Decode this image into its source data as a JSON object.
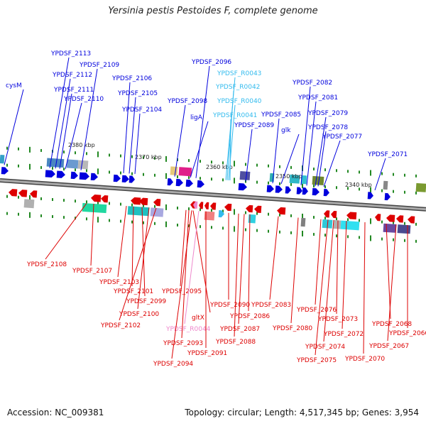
{
  "title": "Yersinia pestis Pestoides F, complete genome",
  "footer": {
    "accession": "Accession: NC_009381",
    "summary": "Topology: circular; Length: 4,517,345 bp; Genes: 3,954"
  },
  "colors": {
    "forward_gene": "#0000dd",
    "reverse_gene": "#dd0000",
    "rna_forward": "#33bbee",
    "rna_reverse": "#ee88cc",
    "backbone": "#777777",
    "tick": "#228822"
  },
  "scale_labels": [
    {
      "text": "2380 kbp",
      "kbp": 2380
    },
    {
      "text": "2370 kbp",
      "kbp": 2370
    },
    {
      "text": "2360 kbp",
      "kbp": 2360
    },
    {
      "text": "2350 kbp",
      "kbp": 2350
    },
    {
      "text": "2340 kbp",
      "kbp": 2340
    }
  ],
  "forward_labels": [
    {
      "text": "cysM",
      "type": "gene"
    },
    {
      "text": "YPDSF_2113",
      "type": "gene"
    },
    {
      "text": "YPDSF_2112",
      "type": "gene"
    },
    {
      "text": "YPDSF_2111",
      "type": "gene"
    },
    {
      "text": "YPDSF_2110",
      "type": "gene"
    },
    {
      "text": "YPDSF_2109",
      "type": "gene"
    },
    {
      "text": "YPDSF_2106",
      "type": "gene"
    },
    {
      "text": "YPDSF_2105",
      "type": "gene"
    },
    {
      "text": "YPDSF_2104",
      "type": "gene"
    },
    {
      "text": "YPDSF_2098",
      "type": "gene"
    },
    {
      "text": "ligA",
      "type": "gene"
    },
    {
      "text": "YPDSF_2096",
      "type": "gene"
    },
    {
      "text": "YPDSF_R0043",
      "type": "rna"
    },
    {
      "text": "YPDSF_R0042",
      "type": "rna"
    },
    {
      "text": "YPDSF_R0040",
      "type": "rna"
    },
    {
      "text": "YPDSF_R0041",
      "type": "rna"
    },
    {
      "text": "YPDSF_2089",
      "type": "gene"
    },
    {
      "text": "YPDSF_2085",
      "type": "gene"
    },
    {
      "text": "glk",
      "type": "gene"
    },
    {
      "text": "YPDSF_2082",
      "type": "gene"
    },
    {
      "text": "YPDSF_2081",
      "type": "gene"
    },
    {
      "text": "YPDSF_2079",
      "type": "gene"
    },
    {
      "text": "YPDSF_2078",
      "type": "gene"
    },
    {
      "text": "YPDSF_2077",
      "type": "gene"
    },
    {
      "text": "YPDSF_2071",
      "type": "gene"
    }
  ],
  "reverse_labels": [
    {
      "text": "YPDSF_2108",
      "type": "gene"
    },
    {
      "text": "YPDSF_2107",
      "type": "gene"
    },
    {
      "text": "YPDSF_2103",
      "type": "gene"
    },
    {
      "text": "YPDSF_2101",
      "type": "gene"
    },
    {
      "text": "YPDSF_2099",
      "type": "gene"
    },
    {
      "text": "YPDSF_2100",
      "type": "gene"
    },
    {
      "text": "YPDSF_2102",
      "type": "gene"
    },
    {
      "text": "YPDSF_2095",
      "type": "gene"
    },
    {
      "text": "gltX",
      "type": "gene"
    },
    {
      "text": "YPDSF_R0044",
      "type": "rna"
    },
    {
      "text": "YPDSF_2093",
      "type": "gene"
    },
    {
      "text": "YPDSF_2094",
      "type": "gene"
    },
    {
      "text": "YPDSF_2091",
      "type": "gene"
    },
    {
      "text": "YPDSF_2090",
      "type": "gene"
    },
    {
      "text": "YPDSF_2088",
      "type": "gene"
    },
    {
      "text": "YPDSF_2087",
      "type": "gene"
    },
    {
      "text": "YPDSF_2086",
      "type": "gene"
    },
    {
      "text": "YPDSF_2083",
      "type": "gene"
    },
    {
      "text": "YPDSF_2080",
      "type": "gene"
    },
    {
      "text": "YPDSF_2076",
      "type": "gene"
    },
    {
      "text": "YPDSF_2075",
      "type": "gene"
    },
    {
      "text": "YPDSF_2074",
      "type": "gene"
    },
    {
      "text": "YPDSF_2073",
      "type": "gene"
    },
    {
      "text": "YPDSF_2072",
      "type": "gene"
    },
    {
      "text": "YPDSF_2070",
      "type": "gene"
    },
    {
      "text": "YPDSF_2068",
      "type": "gene"
    },
    {
      "text": "YPDSF_2067",
      "type": "gene"
    },
    {
      "text": "YPDSF_2066",
      "type": "gene"
    }
  ]
}
